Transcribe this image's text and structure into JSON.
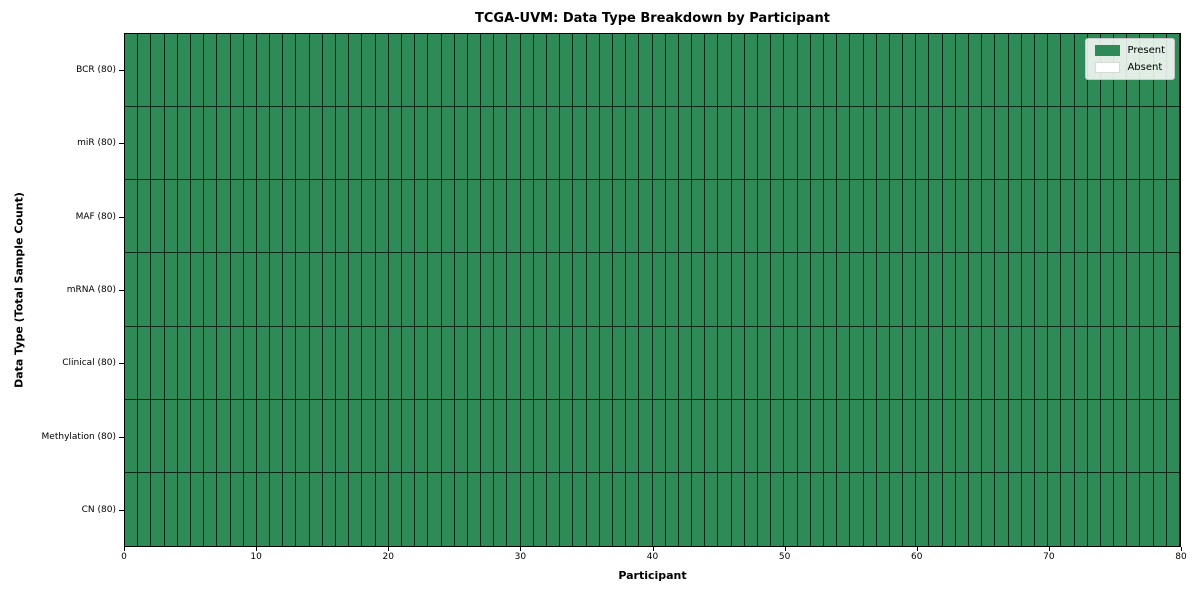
{
  "title": "TCGA-UVM: Data Type Breakdown by Participant",
  "x_axis": {
    "label": "Participant",
    "ticks": [
      0,
      10,
      20,
      30,
      40,
      50,
      60,
      70,
      80
    ],
    "range": [
      0,
      80
    ]
  },
  "y_axis": {
    "label": "Data Type (Total Sample Count)"
  },
  "legend": {
    "position": "upper right",
    "items": [
      {
        "label": "Present",
        "color": "#2e8b57",
        "edge": "none"
      },
      {
        "label": "Absent",
        "color": "#ffffff",
        "edge": "#d8d8d8"
      }
    ]
  },
  "colors": {
    "present": "#2e8b57",
    "absent": "#ffffff",
    "cell_edge": "rgba(0,0,0,0.72)",
    "spine": "#000000"
  },
  "chart_data": {
    "type": "heatmap",
    "title": "TCGA-UVM: Data Type Breakdown by Participant",
    "xlabel": "Participant",
    "ylabel": "Data Type (Total Sample Count)",
    "xlim": [
      0,
      80
    ],
    "x_ticks": [
      0,
      10,
      20,
      30,
      40,
      50,
      60,
      70,
      80
    ],
    "n_participants": 80,
    "categories_top_to_bottom": [
      "BCR (80)",
      "miR (80)",
      "MAF (80)",
      "mRNA (80)",
      "Clinical (80)",
      "Methylation (80)",
      "CN (80)"
    ],
    "series": [
      {
        "name": "BCR (80)",
        "present_count": 80,
        "absent_count": 0
      },
      {
        "name": "miR (80)",
        "present_count": 80,
        "absent_count": 0
      },
      {
        "name": "MAF (80)",
        "present_count": 80,
        "absent_count": 0
      },
      {
        "name": "mRNA (80)",
        "present_count": 80,
        "absent_count": 0
      },
      {
        "name": "Clinical (80)",
        "present_count": 80,
        "absent_count": 0
      },
      {
        "name": "Methylation (80)",
        "present_count": 80,
        "absent_count": 0
      },
      {
        "name": "CN (80)",
        "present_count": 80,
        "absent_count": 0
      }
    ],
    "value_encoding": {
      "present": 1,
      "absent": 0
    },
    "legend_entries": [
      "Present",
      "Absent"
    ],
    "legend_position": "upper right",
    "grid": true
  }
}
